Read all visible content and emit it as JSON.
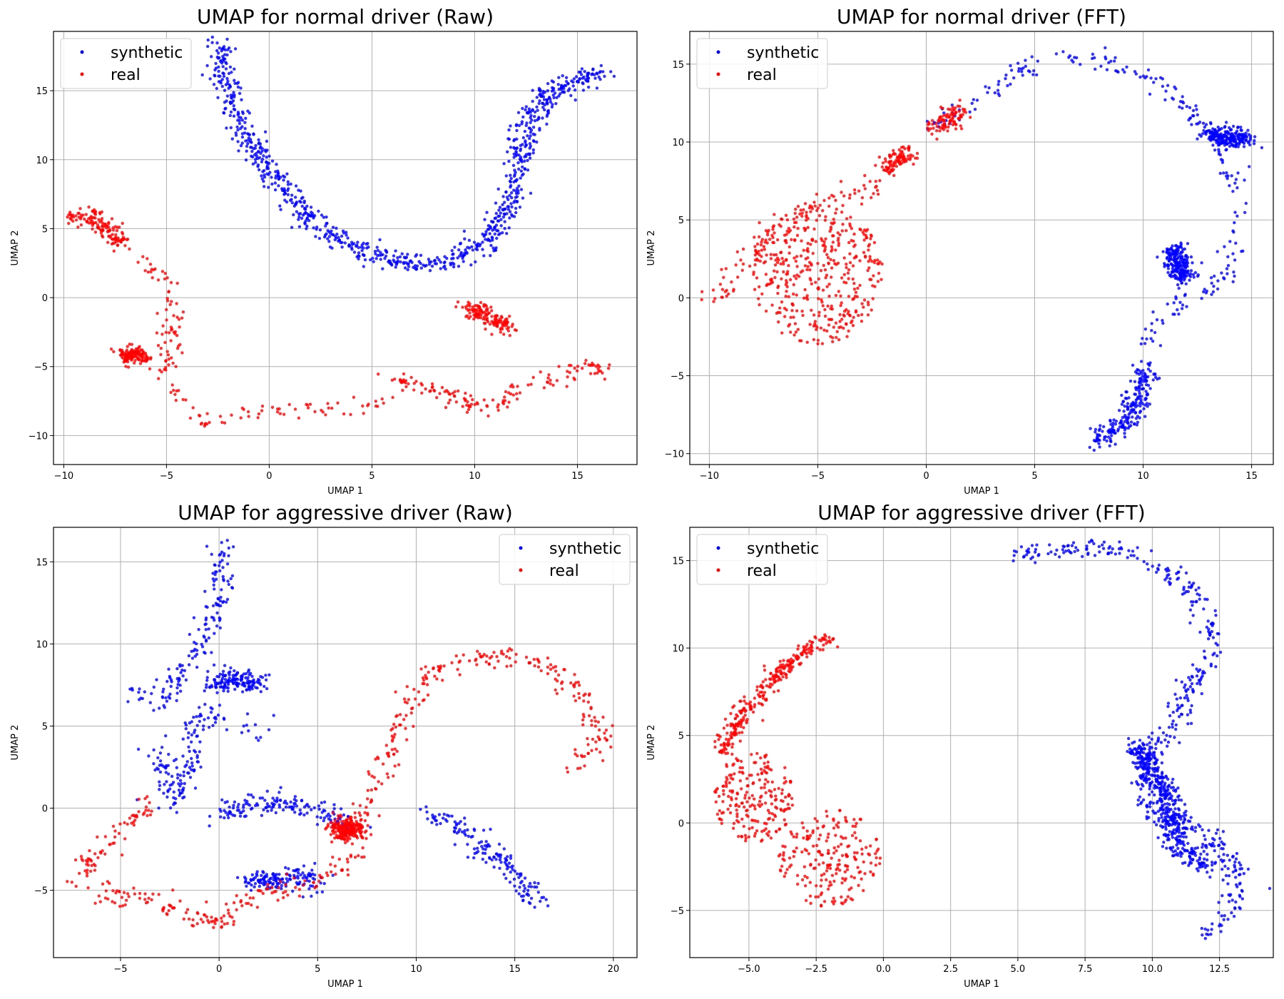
{
  "colors": {
    "synthetic": "#0000ff",
    "real": "#ff0000",
    "grid": "#b0b0b0"
  },
  "chart_data": [
    {
      "type": "scatter",
      "title": "UMAP for normal driver (Raw)",
      "xlabel": "UMAP 1",
      "ylabel": "UMAP 2",
      "xlim": [
        -10.5,
        17.9
      ],
      "ylim": [
        -12.1,
        19.3
      ],
      "xticks": [
        -10,
        -5,
        0,
        5,
        10,
        15
      ],
      "yticks": [
        -10,
        -5,
        0,
        5,
        10,
        15
      ],
      "grid": true,
      "legend_position": "upper-left",
      "series": [
        {
          "name": "synthetic",
          "color": "#0000ff",
          "curves": [
            [
              [
                -2.4,
                18.4
              ],
              [
                -2.2,
                16.0
              ],
              [
                -1.8,
                14.0
              ],
              [
                -1.0,
                11.5
              ],
              [
                0.0,
                9.0
              ],
              [
                1.5,
                6.5
              ],
              [
                3.0,
                4.5
              ],
              [
                5.0,
                3.0
              ],
              [
                7.0,
                2.4
              ],
              [
                9.0,
                2.6
              ],
              [
                10.5,
                4.0
              ],
              [
                11.8,
                7.0
              ],
              [
                12.2,
                10.0
              ],
              [
                12.5,
                12.5
              ],
              [
                13.5,
                14.8
              ],
              [
                16.3,
                16.5
              ]
            ]
          ],
          "spread": 0.35,
          "count": 900
        },
        {
          "name": "real",
          "color": "#ff0000",
          "curves": [
            [
              [
                -9.6,
                6.0
              ],
              [
                -8.7,
                5.8
              ],
              [
                -7.8,
                4.8
              ],
              [
                -7.2,
                4.0
              ]
            ],
            [
              [
                -6.3,
                2.8
              ],
              [
                -5.2,
                1.5
              ],
              [
                -4.8,
                0.0
              ],
              [
                -4.8,
                -2.5
              ],
              [
                -5.0,
                -5.0
              ],
              [
                -4.5,
                -7.0
              ],
              [
                -3.0,
                -9.2
              ],
              [
                -1.5,
                -8.6
              ],
              [
                0.0,
                -8.1
              ],
              [
                2.0,
                -8.0
              ],
              [
                4.0,
                -8.2
              ],
              [
                6.0,
                -7.5
              ]
            ],
            [
              [
                6.0,
                -6.0
              ],
              [
                8.0,
                -6.6
              ],
              [
                9.5,
                -7.6
              ],
              [
                10.8,
                -8.2
              ],
              [
                12.0,
                -7.0
              ],
              [
                13.5,
                -6.0
              ],
              [
                15.5,
                -5.0
              ],
              [
                16.5,
                -5.2
              ]
            ],
            [
              [
                9.7,
                -0.6
              ],
              [
                10.7,
                -1.3
              ],
              [
                11.6,
                -2.3
              ]
            ],
            [
              [
                -7.0,
                -4.2
              ],
              [
                -6.2,
                -4.1
              ]
            ]
          ],
          "spread": 0.3,
          "count": 700
        }
      ]
    },
    {
      "type": "scatter",
      "title": "UMAP for normal driver (FFT)",
      "xlabel": "UMAP 1",
      "ylabel": "UMAP 2",
      "xlim": [
        -10.9,
        16.0
      ],
      "ylim": [
        -10.7,
        17.1
      ],
      "xticks": [
        -10,
        -5,
        0,
        5,
        10,
        15
      ],
      "yticks": [
        -10,
        -5,
        0,
        5,
        10,
        15
      ],
      "grid": true,
      "legend_position": "upper-left",
      "series": [
        {
          "name": "synthetic",
          "color": "#0000ff",
          "curves": [
            [
              [
                0.2,
                10.8
              ],
              [
                1.0,
                11.5
              ],
              [
                2.5,
                12.8
              ],
              [
                4.0,
                14.3
              ],
              [
                6.0,
                15.5
              ],
              [
                8.5,
                15.2
              ],
              [
                10.5,
                14.0
              ],
              [
                12.0,
                12.0
              ],
              [
                13.5,
                10.0
              ],
              [
                14.2,
                7.0
              ],
              [
                14.3,
                4.0
              ],
              [
                13.8,
                1.0
              ],
              [
                12.0,
                0.0
              ],
              [
                10.8,
                -1.0
              ],
              [
                10.2,
                -3.0
              ]
            ],
            [
              [
                10.2,
                -4.5
              ],
              [
                9.8,
                -6.0
              ],
              [
                9.3,
                -8.0
              ],
              [
                7.6,
                -9.4
              ]
            ],
            [
              [
                11.5,
                3.2
              ],
              [
                11.6,
                2.0
              ],
              [
                11.9,
                1.2
              ]
            ],
            [
              [
                13.0,
                10.5
              ],
              [
                14.8,
                10.2
              ]
            ]
          ],
          "spread": 0.28,
          "count": 900
        },
        {
          "name": "real",
          "color": "#ff0000",
          "curves": [
            [
              [
                -1.9,
                8.2
              ],
              [
                -0.9,
                9.3
              ]
            ],
            [
              [
                -9.6,
                -0.2
              ],
              [
                -9.0,
                1.5
              ],
              [
                -8.0,
                3.0
              ],
              [
                -7.0,
                4.5
              ],
              [
                -5.0,
                6.2
              ],
              [
                -3.0,
                6.8
              ],
              [
                -2.0,
                7.7
              ]
            ],
            [
              [
                0.2,
                10.8
              ],
              [
                1.0,
                11.3
              ],
              [
                1.5,
                12.0
              ]
            ]
          ],
          "blobs": [
            {
              "cx": -5.0,
              "cy": 1.5,
              "rx": 3.0,
              "ry": 4.5
            }
          ],
          "spread": 0.3,
          "count": 700
        }
      ]
    },
    {
      "type": "scatter",
      "title": "UMAP for aggressive driver (Raw)",
      "xlabel": "UMAP 1",
      "ylabel": "UMAP 2",
      "xlim": [
        -8.4,
        21.2
      ],
      "ylim": [
        -9.1,
        17.1
      ],
      "xticks": [
        -5,
        0,
        5,
        10,
        15,
        20
      ],
      "yticks": [
        -5,
        0,
        5,
        10,
        15
      ],
      "grid": true,
      "legend_position": "upper-right",
      "series": [
        {
          "name": "synthetic",
          "color": "#0000ff",
          "curves": [
            [
              [
                0.2,
                15.8
              ],
              [
                0.0,
                12.5
              ],
              [
                -1.0,
                10.0
              ],
              [
                -2.0,
                8.0
              ],
              [
                -3.0,
                6.5
              ],
              [
                -4.5,
                7.5
              ]
            ],
            [
              [
                -3.5,
                4.0
              ],
              [
                -2.5,
                2.0
              ],
              [
                -2.5,
                0.2
              ],
              [
                -1.5,
                2.5
              ],
              [
                -1.0,
                6.0
              ],
              [
                0.5,
                5.2
              ],
              [
                2.5,
                4.8
              ]
            ],
            [
              [
                -0.3,
                7.5
              ],
              [
                1.0,
                8.0
              ],
              [
                1.8,
                7.3
              ]
            ],
            [
              [
                0.0,
                -0.4
              ],
              [
                2.0,
                0.3
              ],
              [
                4.0,
                0.2
              ],
              [
                5.5,
                -0.5
              ],
              [
                7.0,
                -1.0
              ]
            ],
            [
              [
                10.5,
                -0.3
              ],
              [
                12.0,
                -1.0
              ],
              [
                13.5,
                -2.5
              ],
              [
                15.0,
                -4.0
              ],
              [
                16.3,
                -5.9
              ]
            ],
            [
              [
                1.5,
                -4.5
              ],
              [
                3.0,
                -4.3
              ],
              [
                5.0,
                -4.4
              ]
            ]
          ],
          "spread": 0.35,
          "count": 900
        },
        {
          "name": "real",
          "color": "#ff0000",
          "curves": [
            [
              [
                -3.5,
                0.5
              ],
              [
                -5.0,
                -1.5
              ],
              [
                -6.5,
                -3.0
              ],
              [
                -7.0,
                -4.5
              ],
              [
                -6.0,
                -5.0
              ],
              [
                -4.0,
                -5.6
              ],
              [
                -2.0,
                -6.3
              ],
              [
                0.0,
                -7.2
              ],
              [
                1.0,
                -6.0
              ],
              [
                2.5,
                -5.0
              ],
              [
                5.0,
                -4.5
              ],
              [
                7.0,
                -3.0
              ],
              [
                7.3,
                -2.2
              ]
            ],
            [
              [
                7.3,
                -0.2
              ],
              [
                8.5,
                3.0
              ],
              [
                9.5,
                6.0
              ],
              [
                10.5,
                8.0
              ],
              [
                12.5,
                9.3
              ],
              [
                15.0,
                9.2
              ],
              [
                17.0,
                8.5
              ],
              [
                18.5,
                6.5
              ],
              [
                19.5,
                4.5
              ],
              [
                18.5,
                3.0
              ],
              [
                17.8,
                2.5
              ]
            ],
            [
              [
                6.0,
                -1.3
              ],
              [
                7.0,
                -1.3
              ]
            ]
          ],
          "spread": 0.32,
          "count": 700
        }
      ]
    },
    {
      "type": "scatter",
      "title": "UMAP for aggressive driver (FFT)",
      "xlabel": "UMAP 1",
      "ylabel": "UMAP 2",
      "xlim": [
        -7.2,
        14.5
      ],
      "ylim": [
        -7.7,
        16.9
      ],
      "xticks": [
        -5.0,
        -2.5,
        0.0,
        2.5,
        5.0,
        7.5,
        10.0,
        12.5
      ],
      "yticks": [
        -5,
        0,
        5,
        10,
        15
      ],
      "grid": true,
      "legend_position": "upper-left",
      "series": [
        {
          "name": "synthetic",
          "color": "#0000ff",
          "curves": [
            [
              [
                5.0,
                15.2
              ],
              [
                6.5,
                15.6
              ],
              [
                8.0,
                15.8
              ],
              [
                9.5,
                15.2
              ],
              [
                11.0,
                14.0
              ],
              [
                12.0,
                12.0
              ],
              [
                12.3,
                10.0
              ],
              [
                11.5,
                8.0
              ],
              [
                11.0,
                6.0
              ],
              [
                10.0,
                4.0
              ],
              [
                9.5,
                2.0
              ],
              [
                10.0,
                0.5
              ],
              [
                11.5,
                0.0
              ],
              [
                12.5,
                -1.5
              ],
              [
                13.3,
                -3.5
              ],
              [
                12.8,
                -5.5
              ],
              [
                12.0,
                -6.3
              ]
            ],
            [
              [
                9.3,
                4.5
              ],
              [
                10.0,
                3.0
              ],
              [
                10.5,
                1.5
              ],
              [
                11.0,
                -1.5
              ],
              [
                12.0,
                -2.5
              ]
            ]
          ],
          "spread": 0.25,
          "count": 900
        },
        {
          "name": "real",
          "color": "#ff0000",
          "curves": [
            [
              [
                -2.0,
                10.6
              ],
              [
                -3.0,
                9.8
              ],
              [
                -4.0,
                8.5
              ],
              [
                -4.8,
                7.0
              ],
              [
                -5.5,
                5.5
              ],
              [
                -6.0,
                4.0
              ]
            ]
          ],
          "blobs": [
            {
              "cx": -4.8,
              "cy": 1.5,
              "rx": 1.5,
              "ry": 2.6
            },
            {
              "cx": -2.0,
              "cy": -2.0,
              "rx": 1.9,
              "ry": 2.8
            }
          ],
          "spread": 0.22,
          "count": 700
        }
      ]
    }
  ]
}
